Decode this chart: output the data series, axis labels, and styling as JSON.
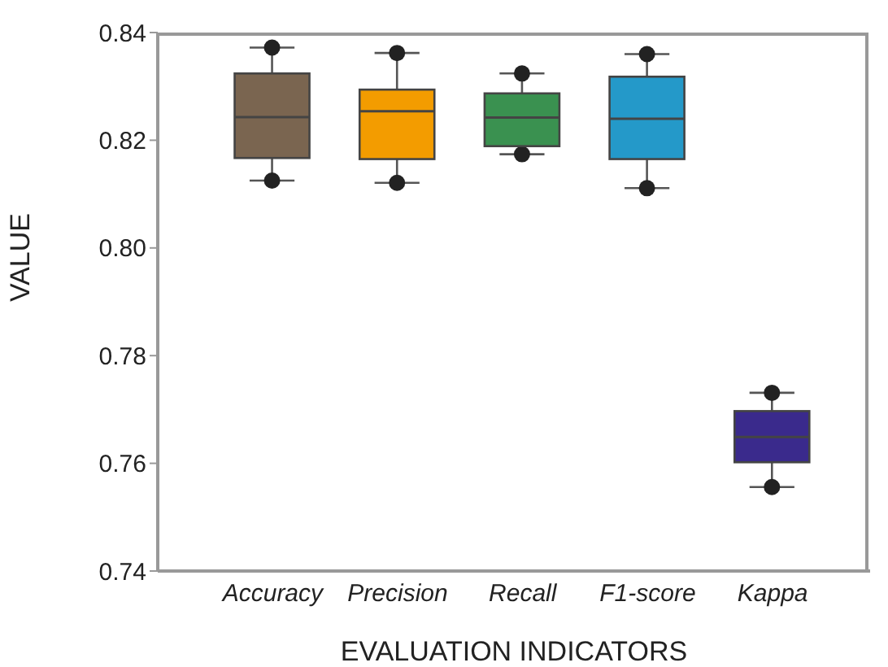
{
  "chart_data": {
    "type": "box",
    "categories": [
      "Accuracy",
      "Precision",
      "Recall",
      "F1-score",
      "Kappa"
    ],
    "boxes": [
      {
        "low": 0.8125,
        "q1": 0.8167,
        "median": 0.8243,
        "q3": 0.8324,
        "high": 0.8372,
        "outliers": [
          0.8125,
          0.8372
        ]
      },
      {
        "low": 0.8121,
        "q1": 0.8165,
        "median": 0.8254,
        "q3": 0.8294,
        "high": 0.8362,
        "outliers": [
          0.8121,
          0.8362
        ]
      },
      {
        "low": 0.8174,
        "q1": 0.8189,
        "median": 0.8242,
        "q3": 0.8287,
        "high": 0.8324,
        "outliers": [
          0.8174,
          0.8324
        ]
      },
      {
        "low": 0.8111,
        "q1": 0.8165,
        "median": 0.824,
        "q3": 0.8318,
        "high": 0.836,
        "outliers": [
          0.8111,
          0.836
        ]
      },
      {
        "low": 0.7556,
        "q1": 0.7602,
        "median": 0.7649,
        "q3": 0.7697,
        "high": 0.7731,
        "outliers": [
          0.7556,
          0.7731
        ]
      }
    ],
    "colors": [
      "#7a6550",
      "#f39c00",
      "#3a9150",
      "#2499c9",
      "#3a2a8c"
    ],
    "xlabel": "EVALUATION INDICATORS",
    "ylabel": "VALUE",
    "ylim": [
      0.74,
      0.84
    ],
    "yticks": [
      0.74,
      0.76,
      0.78,
      {
        "value": 0.8,
        "label": "0.80"
      },
      0.82,
      0.84
    ],
    "grid": false,
    "legend": false
  }
}
